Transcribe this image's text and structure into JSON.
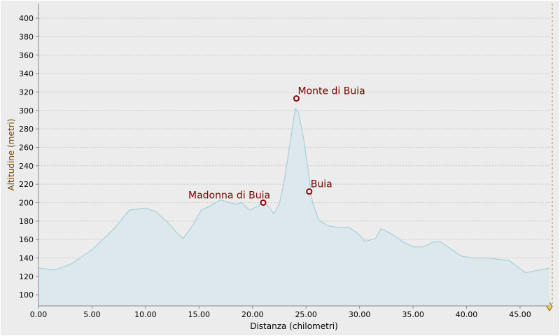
{
  "chart_data": {
    "type": "area",
    "x_label": "Distanza (chilometri)",
    "y_label": "Altitudine (metri)",
    "color": "#dde8ec",
    "line_color": "#a9cfd8",
    "grid": true,
    "xlim": [
      0,
      47.75
    ],
    "ylim": [
      88,
      416
    ],
    "xticks": [
      {
        "value": 0,
        "label": "0.00"
      },
      {
        "value": 5,
        "label": "5.00"
      },
      {
        "value": 10,
        "label": "10.00"
      },
      {
        "value": 15,
        "label": "15.00"
      },
      {
        "value": 20,
        "label": "20.00"
      },
      {
        "value": 25,
        "label": "25.00"
      },
      {
        "value": 30,
        "label": "30.00"
      },
      {
        "value": 35,
        "label": "35.00"
      },
      {
        "value": 40,
        "label": "40.00"
      },
      {
        "value": 45,
        "label": "45.00"
      }
    ],
    "yticks": [
      100,
      120,
      140,
      160,
      180,
      200,
      220,
      240,
      260,
      280,
      300,
      320,
      340,
      360,
      380,
      400
    ],
    "x": [
      0,
      1.5,
      3,
      5,
      7,
      8.5,
      10,
      11,
      12,
      12.8,
      13.5,
      14.5,
      15.2,
      16,
      17,
      17.8,
      18.5,
      19,
      19.7,
      20.5,
      21,
      21.5,
      22,
      22.5,
      23,
      23.5,
      24,
      24.3,
      24.8,
      25.2,
      25.6,
      26.2,
      27,
      28,
      29,
      29.8,
      30.5,
      31.5,
      32,
      33,
      34,
      35,
      36,
      36.8,
      37.5,
      38.5,
      39.5,
      40.5,
      42,
      44,
      45.5,
      47.75
    ],
    "values": [
      129,
      127,
      133,
      149,
      171,
      192,
      194,
      190,
      179,
      169,
      161,
      177,
      192,
      196,
      203,
      200,
      198,
      200,
      192,
      196,
      200,
      196,
      188,
      198,
      226,
      264,
      302,
      298,
      268,
      234,
      200,
      181,
      175,
      173,
      173,
      167,
      158,
      161,
      172,
      166,
      158,
      152,
      152,
      157,
      158,
      150,
      142,
      140,
      140,
      137,
      124,
      129
    ],
    "annotations": [
      {
        "label": "Madonna di Buia",
        "x": 21,
        "y": 200
      },
      {
        "label": "Monte di Buia",
        "x": 24.1,
        "y": 313
      },
      {
        "label": "Buia",
        "x": 25.3,
        "y": 212
      }
    ]
  }
}
